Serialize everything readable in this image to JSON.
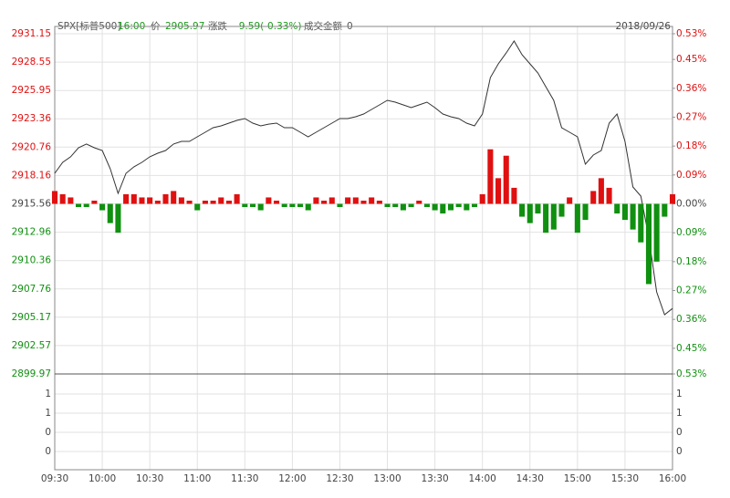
{
  "chart_data": {
    "type": "line",
    "header": [
      {
        "text": "SPX[标普500]",
        "color": "#555"
      },
      {
        "text": "16:00",
        "color": "#1a9a1a"
      },
      {
        "text": "价",
        "color": "#555"
      },
      {
        "text": "2905.97",
        "color": "#1a9a1a"
      },
      {
        "text": "涨跌",
        "color": "#555"
      },
      {
        "text": "-9.59(-0.33%)",
        "color": "#1a9a1a"
      },
      {
        "text": "成交金额",
        "color": "#555"
      },
      {
        "text": "0",
        "color": "#555"
      }
    ],
    "date": "2018/09/26",
    "categories": [
      "09:30",
      null,
      null,
      null,
      null,
      null,
      "10:00",
      null,
      null,
      null,
      null,
      null,
      "10:30",
      null,
      null,
      null,
      null,
      null,
      "11:00",
      null,
      null,
      null,
      null,
      null,
      "11:30",
      null,
      null,
      null,
      null,
      null,
      "12:00",
      null,
      null,
      null,
      null,
      null,
      "12:30",
      null,
      null,
      null,
      null,
      null,
      "13:00",
      null,
      null,
      null,
      null,
      null,
      "13:30",
      null,
      null,
      null,
      null,
      null,
      "14:00",
      null,
      null,
      null,
      null,
      null,
      "14:30",
      null,
      null,
      null,
      null,
      null,
      "15:00",
      null,
      null,
      null,
      null,
      null,
      "15:30",
      null,
      null,
      null,
      null,
      null,
      "16:00"
    ],
    "series": [
      {
        "color": "#333333",
        "values": [
          2918.36,
          2919.36,
          2919.87,
          2920.7,
          2921.04,
          2920.7,
          2920.45,
          2918.78,
          2916.52,
          2918.36,
          2918.95,
          2919.36,
          2919.87,
          2920.2,
          2920.45,
          2921.04,
          2921.29,
          2921.29,
          2921.7,
          2922.12,
          2922.54,
          2922.71,
          2922.96,
          2923.21,
          2923.38,
          2922.96,
          2922.71,
          2922.87,
          2922.96,
          2922.54,
          2922.54,
          2922.12,
          2921.7,
          2922.12,
          2922.54,
          2922.96,
          2923.38,
          2923.38,
          2923.54,
          2923.79,
          2924.21,
          2924.63,
          2925.05,
          2924.88,
          2924.63,
          2924.38,
          2924.63,
          2924.88,
          2924.38,
          2923.79,
          2923.54,
          2923.38,
          2922.96,
          2922.71,
          2923.79,
          2927.14,
          2928.39,
          2929.39,
          2930.48,
          2929.23,
          2928.39,
          2927.56,
          2926.3,
          2925.05,
          2922.54,
          2922.12,
          2921.7,
          2919.2,
          2920.03,
          2920.45,
          2922.96,
          2923.79,
          2921.29,
          2917.11,
          2916.27,
          2912.51,
          2907.49,
          2905.4,
          2905.97
        ]
      },
      {
        "type": "bar",
        "axis": "y2",
        "up_color": "#e01010",
        "down_color": "#109010",
        "values": [
          0.04,
          0.03,
          0.02,
          -0.01,
          -0.01,
          0.01,
          -0.02,
          -0.06,
          -0.09,
          0.03,
          0.03,
          0.02,
          0.02,
          0.01,
          0.03,
          0.04,
          0.02,
          0.01,
          -0.02,
          0.01,
          0.01,
          0.02,
          0.01,
          0.03,
          -0.01,
          -0.01,
          -0.02,
          0.02,
          0.01,
          -0.01,
          -0.01,
          -0.01,
          -0.02,
          0.02,
          0.01,
          0.02,
          -0.01,
          0.02,
          0.02,
          0.01,
          0.02,
          0.01,
          -0.01,
          -0.01,
          -0.02,
          -0.01,
          0.01,
          -0.01,
          -0.02,
          -0.03,
          -0.02,
          -0.01,
          -0.02,
          -0.01,
          0.03,
          0.17,
          0.08,
          0.15,
          0.05,
          -0.04,
          -0.06,
          -0.03,
          -0.09,
          -0.08,
          -0.04,
          0.02,
          -0.09,
          -0.05,
          0.04,
          0.08,
          0.05,
          -0.03,
          -0.05,
          -0.08,
          -0.12,
          -0.25,
          -0.18,
          -0.04,
          0.03
        ]
      }
    ],
    "ylim": [
      2899.97,
      2931.15
    ],
    "yticks": [
      2931.15,
      2928.55,
      2925.95,
      2923.36,
      2920.76,
      2918.16,
      2915.56,
      2912.96,
      2910.36,
      2907.76,
      2905.17,
      2902.57,
      2899.97
    ],
    "y2lim": [
      -0.53,
      0.53
    ],
    "y2ticks": [
      {
        "value": 0.53,
        "label": "0.53%"
      },
      {
        "value": 0.45,
        "label": "0.45%"
      },
      {
        "value": 0.36,
        "label": "0.36%"
      },
      {
        "value": 0.27,
        "label": "0.27%"
      },
      {
        "value": 0.18,
        "label": "0.18%"
      },
      {
        "value": 0.09,
        "label": "0.09%"
      },
      {
        "value": 0,
        "label": "0.00%"
      },
      {
        "value": -0.09,
        "label": "0.09%"
      },
      {
        "value": -0.18,
        "label": "0.18%"
      },
      {
        "value": -0.27,
        "label": "0.27%"
      },
      {
        "value": -0.36,
        "label": "0.36%"
      },
      {
        "value": -0.45,
        "label": "0.45%"
      },
      {
        "value": -0.53,
        "label": "0.53%"
      }
    ],
    "volume_yticks": [
      1,
      1,
      0,
      0
    ],
    "grid": true
  }
}
